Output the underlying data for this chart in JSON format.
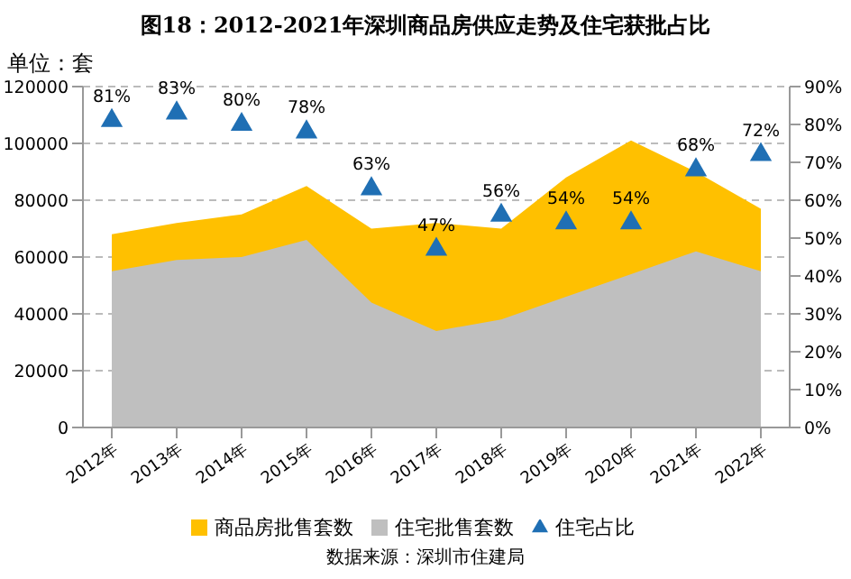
{
  "chart_data": {
    "type": "area",
    "title": "图18：2012-2021年深圳商品房供应走势及住宅获批占比",
    "ylabel": "单位：套",
    "annotations": [
      "数据来源：深圳市住建局"
    ],
    "categories": [
      "2012年",
      "2013年",
      "2014年",
      "2015年",
      "2016年",
      "2017年",
      "2018年",
      "2019年",
      "2020年",
      "2021年",
      "2022年"
    ],
    "series": [
      {
        "name": "商品房批售套数",
        "color": "#ffc000",
        "values": [
          68000,
          72000,
          75000,
          85000,
          70000,
          72000,
          70000,
          88000,
          101000,
          90000,
          77000
        ]
      },
      {
        "name": "住宅批售套数",
        "color": "#bfbfbf",
        "values": [
          55000,
          59000,
          60000,
          66000,
          44000,
          34000,
          38000,
          46000,
          54000,
          62000,
          55000
        ]
      },
      {
        "name": "住宅占比",
        "type": "scatter",
        "axis": "y2",
        "marker": "triangle",
        "color": "#1f6fb4",
        "values": [
          81,
          83,
          80,
          78,
          63,
          47,
          56,
          54,
          54,
          68,
          72
        ],
        "value_labels": [
          "81%",
          "83%",
          "80%",
          "78%",
          "63%",
          "47%",
          "56%",
          "54%",
          "54%",
          "68%",
          "72%"
        ]
      }
    ],
    "ylim": [
      0,
      120000
    ],
    "yticks": [
      0,
      20000,
      40000,
      60000,
      80000,
      100000,
      120000
    ],
    "y2lim": [
      0,
      90
    ],
    "y2ticks": [
      {
        "value": 0,
        "label": "0%"
      },
      {
        "value": 10,
        "label": "10%"
      },
      {
        "value": 20,
        "label": "20%"
      },
      {
        "value": 30,
        "label": "30%"
      },
      {
        "value": 40,
        "label": "40%"
      },
      {
        "value": 50,
        "label": "50%"
      },
      {
        "value": 60,
        "label": "60%"
      },
      {
        "value": 70,
        "label": "70%"
      },
      {
        "value": 80,
        "label": "80%"
      },
      {
        "value": 90,
        "label": "90%"
      }
    ],
    "grid": "y",
    "legend": "bottom"
  }
}
